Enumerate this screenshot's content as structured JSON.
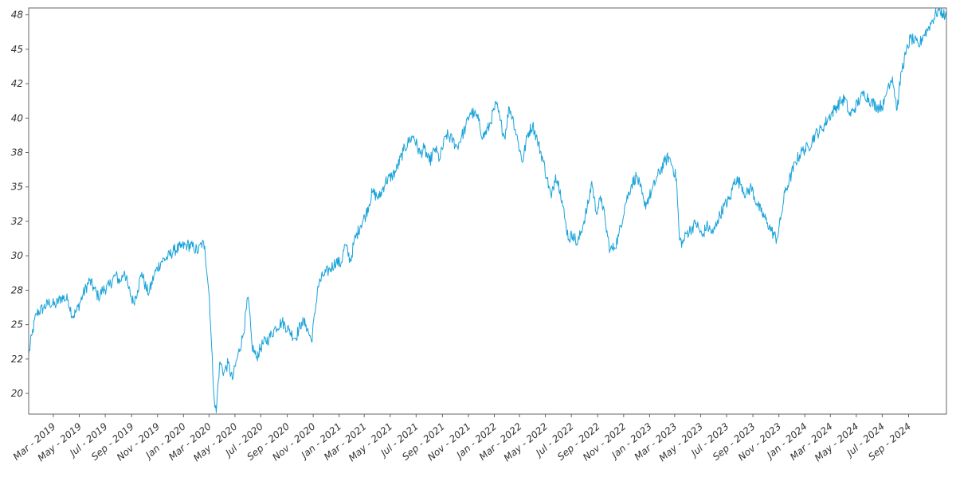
{
  "chart_data": {
    "type": "line",
    "title": "",
    "xlabel": "",
    "ylabel": "",
    "line_color": "#1aa3d9",
    "axis_color": "#666666",
    "tick_label_color": "#333333",
    "x_tick_labels": [
      "Mar - 2019",
      "May - 2019",
      "Jul - 2019",
      "Sep - 2019",
      "Nov - 2019",
      "Jan - 2020",
      "Mar - 2020",
      "May - 2020",
      "Jul - 2020",
      "Sep - 2020",
      "Nov - 2020",
      "Jan - 2021",
      "Mar - 2021",
      "May - 2021",
      "Jul - 2021",
      "Sep - 2021",
      "Nov - 2021",
      "Jan - 2022",
      "Mar - 2022",
      "May - 2022",
      "Jul - 2022",
      "Sep - 2022",
      "Nov - 2022",
      "Jan - 2023",
      "Mar - 2023",
      "May - 2023",
      "Jul - 2023",
      "Sep - 2023",
      "Nov - 2023",
      "Jan - 2024",
      "Mar - 2024",
      "May - 2024",
      "Jul - 2024",
      "Sep - 2024"
    ],
    "y_tick_labels": [
      "20",
      "22",
      "25",
      "28",
      "30",
      "32",
      "35",
      "38",
      "40",
      "42",
      "45",
      "48"
    ],
    "y_ticks": [
      20,
      22.5,
      25,
      27.5,
      30,
      32.5,
      35,
      37.5,
      40,
      42.5,
      45,
      47.5
    ],
    "xlim": [
      "2019-01-02",
      "2024-11-29"
    ],
    "ylim": [
      18.5,
      48.0
    ],
    "grid": false,
    "series": [
      {
        "points": [
          [
            "2019-01-02",
            22.8
          ],
          [
            "2019-01-10",
            24.3
          ],
          [
            "2019-01-20",
            25.8
          ],
          [
            "2019-02-05",
            26.2
          ],
          [
            "2019-02-20",
            26.6
          ],
          [
            "2019-03-05",
            26.4
          ],
          [
            "2019-03-20",
            27.0
          ],
          [
            "2019-04-05",
            26.8
          ],
          [
            "2019-04-15",
            25.6
          ],
          [
            "2019-04-25",
            26.0
          ],
          [
            "2019-05-10",
            27.2
          ],
          [
            "2019-05-25",
            28.2
          ],
          [
            "2019-06-05",
            27.6
          ],
          [
            "2019-06-15",
            27.0
          ],
          [
            "2019-06-25",
            27.5
          ],
          [
            "2019-07-10",
            27.8
          ],
          [
            "2019-07-25",
            28.6
          ],
          [
            "2019-08-05",
            28.1
          ],
          [
            "2019-08-15",
            28.9
          ],
          [
            "2019-08-25",
            27.6
          ],
          [
            "2019-09-05",
            26.6
          ],
          [
            "2019-09-15",
            27.5
          ],
          [
            "2019-09-25",
            28.8
          ],
          [
            "2019-10-05",
            27.6
          ],
          [
            "2019-10-12",
            27.3
          ],
          [
            "2019-10-25",
            28.7
          ],
          [
            "2019-11-10",
            29.6
          ],
          [
            "2019-11-25",
            29.9
          ],
          [
            "2019-12-10",
            30.4
          ],
          [
            "2019-12-25",
            30.6
          ],
          [
            "2020-01-10",
            30.8
          ],
          [
            "2020-01-25",
            30.6
          ],
          [
            "2020-02-05",
            30.3
          ],
          [
            "2020-02-12",
            30.9
          ],
          [
            "2020-02-20",
            30.7
          ],
          [
            "2020-02-27",
            28.2
          ],
          [
            "2020-03-02",
            26.9
          ],
          [
            "2020-03-06",
            24.2
          ],
          [
            "2020-03-10",
            21.4
          ],
          [
            "2020-03-13",
            19.8
          ],
          [
            "2020-03-18",
            18.6
          ],
          [
            "2020-03-23",
            21.0
          ],
          [
            "2020-03-27",
            22.3
          ],
          [
            "2020-04-05",
            21.5
          ],
          [
            "2020-04-15",
            22.2
          ],
          [
            "2020-04-25",
            21.0
          ],
          [
            "2020-05-05",
            22.4
          ],
          [
            "2020-05-20",
            24.2
          ],
          [
            "2020-06-01",
            27.0
          ],
          [
            "2020-06-10",
            23.5
          ],
          [
            "2020-06-20",
            22.6
          ],
          [
            "2020-07-05",
            23.6
          ],
          [
            "2020-07-20",
            24.0
          ],
          [
            "2020-08-05",
            24.8
          ],
          [
            "2020-08-20",
            25.2
          ],
          [
            "2020-09-05",
            24.6
          ],
          [
            "2020-09-20",
            24.0
          ],
          [
            "2020-10-05",
            25.2
          ],
          [
            "2020-10-15",
            25.0
          ],
          [
            "2020-10-28",
            23.8
          ],
          [
            "2020-11-05",
            25.8
          ],
          [
            "2020-11-12",
            27.8
          ],
          [
            "2020-11-25",
            28.6
          ],
          [
            "2020-12-10",
            29.0
          ],
          [
            "2020-12-25",
            29.6
          ],
          [
            "2021-01-05",
            29.4
          ],
          [
            "2021-01-15",
            30.8
          ],
          [
            "2021-01-28",
            29.6
          ],
          [
            "2021-02-05",
            31.0
          ],
          [
            "2021-02-20",
            32.2
          ],
          [
            "2021-03-05",
            33.0
          ],
          [
            "2021-03-20",
            34.6
          ],
          [
            "2021-04-05",
            34.2
          ],
          [
            "2021-04-20",
            35.4
          ],
          [
            "2021-05-05",
            35.8
          ],
          [
            "2021-05-15",
            36.2
          ],
          [
            "2021-06-01",
            37.6
          ],
          [
            "2021-06-15",
            38.4
          ],
          [
            "2021-06-25",
            38.7
          ],
          [
            "2021-07-10",
            37.4
          ],
          [
            "2021-07-20",
            37.8
          ],
          [
            "2021-08-01",
            36.8
          ],
          [
            "2021-08-15",
            37.8
          ],
          [
            "2021-08-25",
            37.0
          ],
          [
            "2021-09-10",
            38.8
          ],
          [
            "2021-09-25",
            38.4
          ],
          [
            "2021-10-05",
            37.9
          ],
          [
            "2021-10-15",
            38.6
          ],
          [
            "2021-10-25",
            39.3
          ],
          [
            "2021-11-05",
            40.4
          ],
          [
            "2021-11-15",
            40.3
          ],
          [
            "2021-11-25",
            39.8
          ],
          [
            "2021-12-05",
            38.6
          ],
          [
            "2021-12-20",
            39.4
          ],
          [
            "2021-12-31",
            40.6
          ],
          [
            "2022-01-06",
            41.0
          ],
          [
            "2022-01-15",
            39.8
          ],
          [
            "2022-01-25",
            38.6
          ],
          [
            "2022-02-05",
            40.8
          ],
          [
            "2022-02-15",
            39.8
          ],
          [
            "2022-02-25",
            38.4
          ],
          [
            "2022-03-08",
            36.8
          ],
          [
            "2022-03-20",
            38.8
          ],
          [
            "2022-04-01",
            39.5
          ],
          [
            "2022-04-12",
            38.4
          ],
          [
            "2022-04-25",
            37.0
          ],
          [
            "2022-05-05",
            35.6
          ],
          [
            "2022-05-15",
            34.2
          ],
          [
            "2022-05-25",
            35.9
          ],
          [
            "2022-06-05",
            34.8
          ],
          [
            "2022-06-15",
            32.8
          ],
          [
            "2022-06-25",
            31.2
          ],
          [
            "2022-07-05",
            31.6
          ],
          [
            "2022-07-15",
            30.8
          ],
          [
            "2022-07-28",
            32.2
          ],
          [
            "2022-08-10",
            33.8
          ],
          [
            "2022-08-18",
            35.4
          ],
          [
            "2022-08-28",
            33.2
          ],
          [
            "2022-09-10",
            34.2
          ],
          [
            "2022-09-20",
            32.2
          ],
          [
            "2022-09-30",
            30.4
          ],
          [
            "2022-10-10",
            30.6
          ],
          [
            "2022-10-20",
            31.4
          ],
          [
            "2022-11-05",
            33.8
          ],
          [
            "2022-11-20",
            35.2
          ],
          [
            "2022-12-01",
            35.8
          ],
          [
            "2022-12-10",
            35.0
          ],
          [
            "2022-12-20",
            33.6
          ],
          [
            "2023-01-05",
            34.6
          ],
          [
            "2023-01-20",
            35.8
          ],
          [
            "2023-02-05",
            36.8
          ],
          [
            "2023-02-15",
            37.2
          ],
          [
            "2023-02-25",
            36.4
          ],
          [
            "2023-03-05",
            35.6
          ],
          [
            "2023-03-12",
            31.2
          ],
          [
            "2023-03-20",
            30.9
          ],
          [
            "2023-03-28",
            31.6
          ],
          [
            "2023-04-10",
            32.0
          ],
          [
            "2023-04-20",
            32.4
          ],
          [
            "2023-05-05",
            31.4
          ],
          [
            "2023-05-15",
            32.2
          ],
          [
            "2023-05-30",
            31.6
          ],
          [
            "2023-06-10",
            32.6
          ],
          [
            "2023-06-25",
            33.6
          ],
          [
            "2023-07-10",
            34.2
          ],
          [
            "2023-07-20",
            35.6
          ],
          [
            "2023-08-05",
            35.2
          ],
          [
            "2023-08-15",
            34.4
          ],
          [
            "2023-08-28",
            35.0
          ],
          [
            "2023-09-10",
            33.8
          ],
          [
            "2023-09-20",
            33.2
          ],
          [
            "2023-10-05",
            32.4
          ],
          [
            "2023-10-15",
            31.8
          ],
          [
            "2023-10-27",
            31.2
          ],
          [
            "2023-11-05",
            32.6
          ],
          [
            "2023-11-15",
            34.6
          ],
          [
            "2023-11-25",
            35.4
          ],
          [
            "2023-12-10",
            36.8
          ],
          [
            "2023-12-25",
            37.6
          ],
          [
            "2024-01-10",
            37.9
          ],
          [
            "2024-01-25",
            38.8
          ],
          [
            "2024-02-10",
            39.2
          ],
          [
            "2024-02-25",
            40.0
          ],
          [
            "2024-03-10",
            40.6
          ],
          [
            "2024-03-25",
            41.2
          ],
          [
            "2024-04-05",
            41.4
          ],
          [
            "2024-04-15",
            40.2
          ],
          [
            "2024-04-25",
            40.6
          ],
          [
            "2024-05-10",
            41.4
          ],
          [
            "2024-05-20",
            41.8
          ],
          [
            "2024-06-05",
            41.2
          ],
          [
            "2024-06-20",
            40.8
          ],
          [
            "2024-07-05",
            41.0
          ],
          [
            "2024-07-15",
            42.4
          ],
          [
            "2024-07-25",
            43.0
          ],
          [
            "2024-08-05",
            40.6
          ],
          [
            "2024-08-15",
            43.4
          ],
          [
            "2024-08-25",
            44.6
          ],
          [
            "2024-09-05",
            45.8
          ],
          [
            "2024-09-15",
            45.6
          ],
          [
            "2024-09-25",
            45.2
          ],
          [
            "2024-10-05",
            46.0
          ],
          [
            "2024-10-15",
            46.4
          ],
          [
            "2024-10-25",
            47.0
          ],
          [
            "2024-11-05",
            47.6
          ],
          [
            "2024-11-12",
            47.9
          ],
          [
            "2024-11-20",
            47.6
          ],
          [
            "2024-11-29",
            47.3
          ]
        ]
      }
    ]
  }
}
